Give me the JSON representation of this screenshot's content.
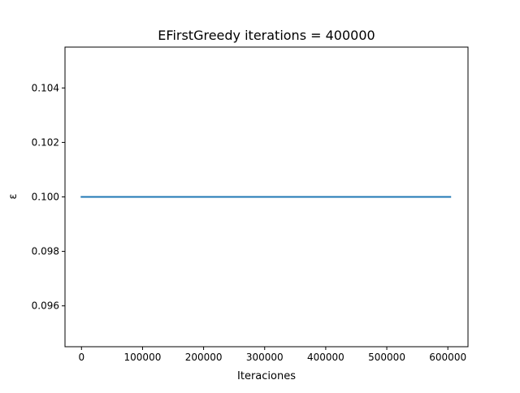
{
  "chart_data": {
    "type": "line",
    "title": "EFirstGreedy iterations = 400000",
    "xlabel": "Iteraciones",
    "ylabel": "ε",
    "xlim": [
      -27000,
      633000
    ],
    "ylim": [
      0.0945,
      0.1055
    ],
    "xticks": [
      0,
      100000,
      200000,
      300000,
      400000,
      500000,
      600000
    ],
    "xtick_labels": [
      "0",
      "100000",
      "200000",
      "300000",
      "400000",
      "500000",
      "600000"
    ],
    "yticks": [
      0.096,
      0.098,
      0.1,
      0.102,
      0.104
    ],
    "ytick_labels": [
      "0.096",
      "0.098",
      "0.100",
      "0.102",
      "0.104"
    ],
    "grid": false,
    "series": [
      {
        "color": "#1f77b4",
        "x": [
          0,
          604000
        ],
        "y": [
          0.1,
          0.1
        ]
      }
    ]
  }
}
